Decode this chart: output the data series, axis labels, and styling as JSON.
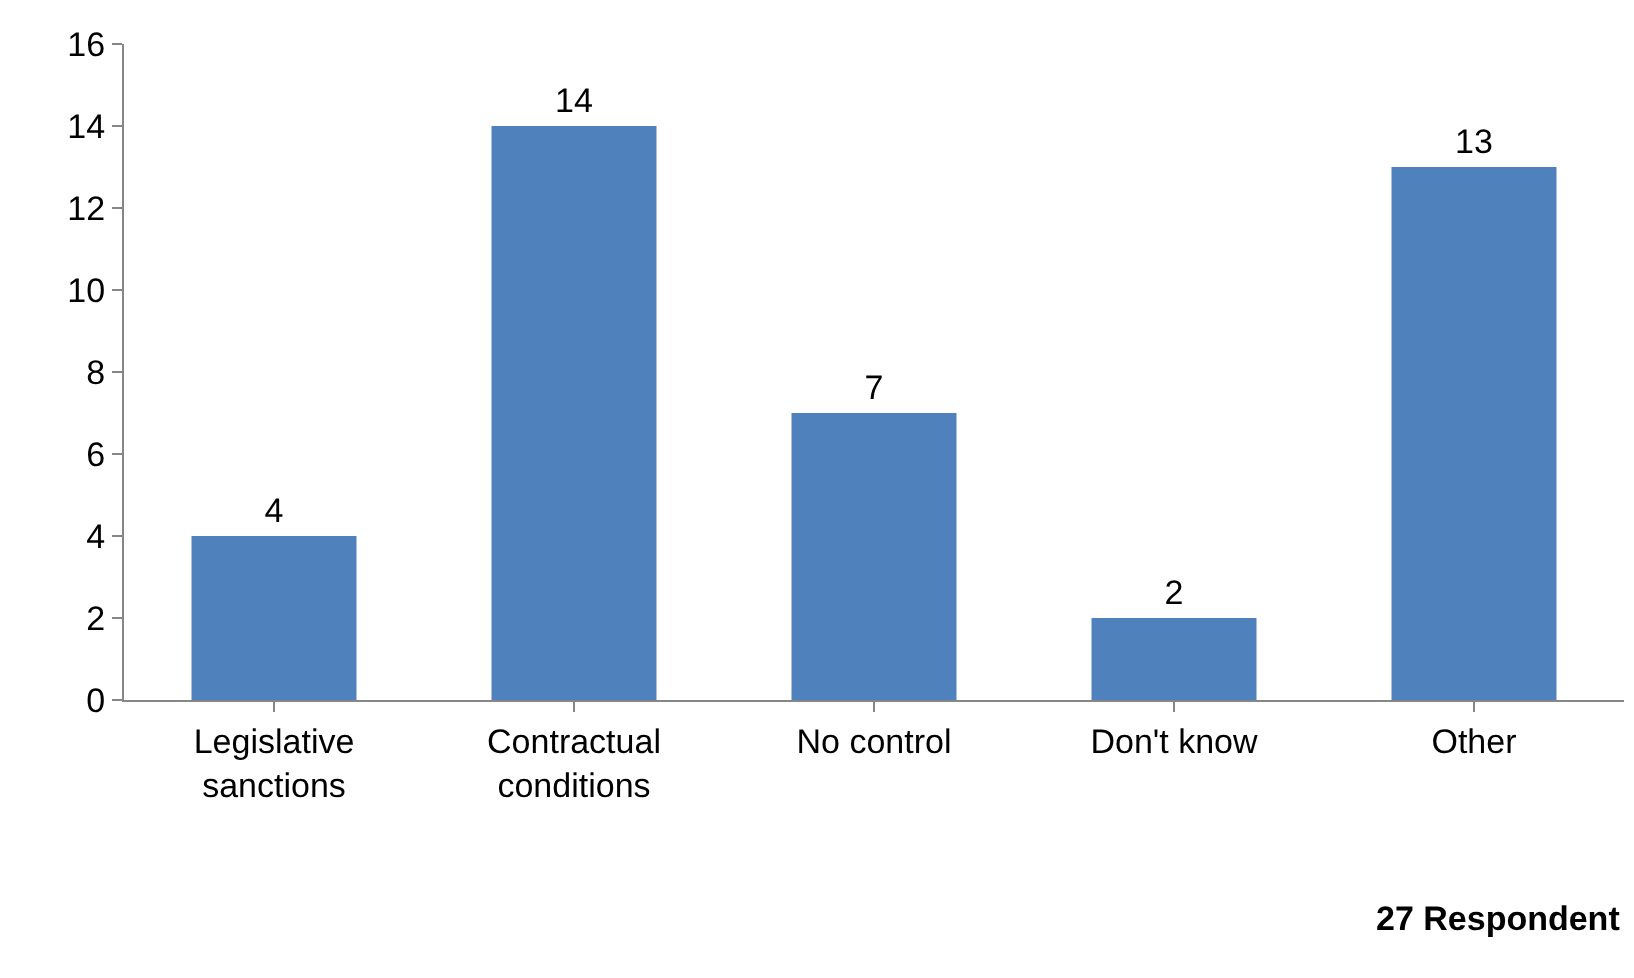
{
  "chart_data": {
    "type": "bar",
    "categories": [
      "Legislative\nsanctions",
      "Contractual\nconditions",
      "No control",
      "Don't know",
      "Other"
    ],
    "values": [
      4,
      14,
      7,
      2,
      13
    ],
    "color": "#4f81bd",
    "ylim": [
      0,
      16
    ],
    "yticks": [
      0,
      2,
      4,
      6,
      8,
      10,
      12,
      14,
      16
    ],
    "data_labels": true,
    "annotations": [
      "27 Respondent"
    ]
  }
}
